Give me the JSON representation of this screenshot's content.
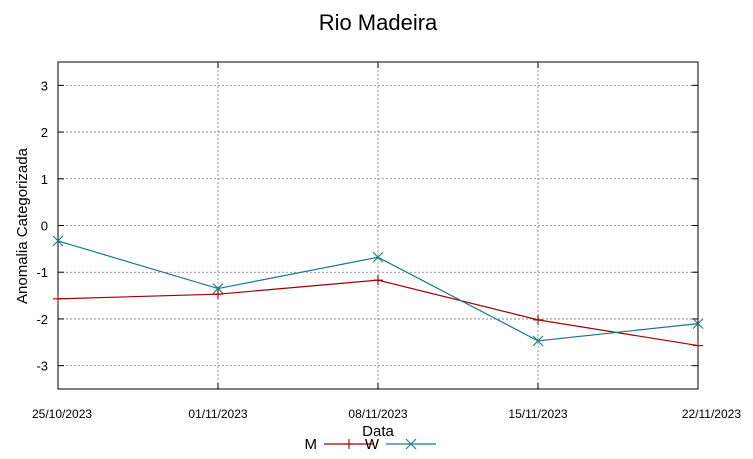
{
  "chart_data": {
    "type": "line",
    "title": "Rio Madeira",
    "xlabel": "Data",
    "ylabel": "Anomalia Categorizada",
    "categories": [
      "25/10/2023",
      "01/11/2023",
      "08/11/2023",
      "15/11/2023",
      "22/11/2023"
    ],
    "ylim": [
      -3.5,
      3.5
    ],
    "yticks": [
      3,
      2,
      1,
      0,
      -1,
      -2,
      -3
    ],
    "grid": true,
    "legend_position": "bottom",
    "series": [
      {
        "name": "M",
        "color": "#a00000",
        "marker": "plus",
        "values": [
          -1.57,
          -1.47,
          -1.17,
          -2.02,
          -2.57
        ]
      },
      {
        "name": "W",
        "color": "#1a7a80",
        "marker": "cross",
        "values": [
          -0.33,
          -1.35,
          -0.68,
          -2.47,
          -2.1
        ]
      }
    ]
  }
}
